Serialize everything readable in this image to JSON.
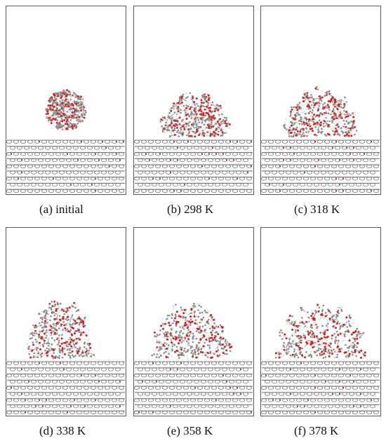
{
  "figure": {
    "panels": [
      {
        "caption": "(a) initial",
        "state": "initial"
      },
      {
        "caption": "(b) 298 K",
        "state": "298 K"
      },
      {
        "caption": "(c) 318 K",
        "state": "318 K"
      },
      {
        "caption": "(d) 338 K",
        "state": "338 K"
      },
      {
        "caption": "(e) 358 K",
        "state": "358 K"
      },
      {
        "caption": "(f) 378 K",
        "state": "378 K"
      }
    ]
  },
  "colors": {
    "frame_border": "#5a5a5a",
    "carbon": "#8c8c8c",
    "hydrogen": "#d8d8d8",
    "oxygen": "#d42020",
    "substrate": "#7a7a7a",
    "substrate_accent": "#b03030"
  }
}
